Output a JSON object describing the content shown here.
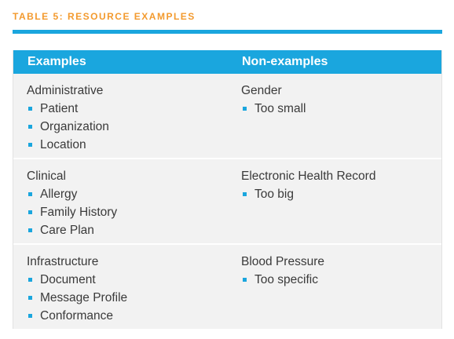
{
  "caption": "TABLE 5: RESOURCE EXAMPLES",
  "colors": {
    "accent": "#1aa6de",
    "caption": "#f39a2e",
    "row_bg": "#f2f2f2"
  },
  "headers": [
    "Examples",
    "Non-examples"
  ],
  "rows": [
    {
      "example": {
        "title": "Administrative",
        "items": [
          "Patient",
          "Organization",
          "Location"
        ]
      },
      "nonexample": {
        "title": "Gender",
        "items": [
          "Too small"
        ]
      }
    },
    {
      "example": {
        "title": "Clinical",
        "items": [
          "Allergy",
          "Family History",
          "Care Plan"
        ]
      },
      "nonexample": {
        "title": "Electronic Health Record",
        "items": [
          "Too big"
        ]
      }
    },
    {
      "example": {
        "title": "Infrastructure",
        "items": [
          "Document",
          "Message Profile",
          "Conformance"
        ]
      },
      "nonexample": {
        "title": "Blood Pressure",
        "items": [
          "Too specific"
        ]
      }
    }
  ]
}
